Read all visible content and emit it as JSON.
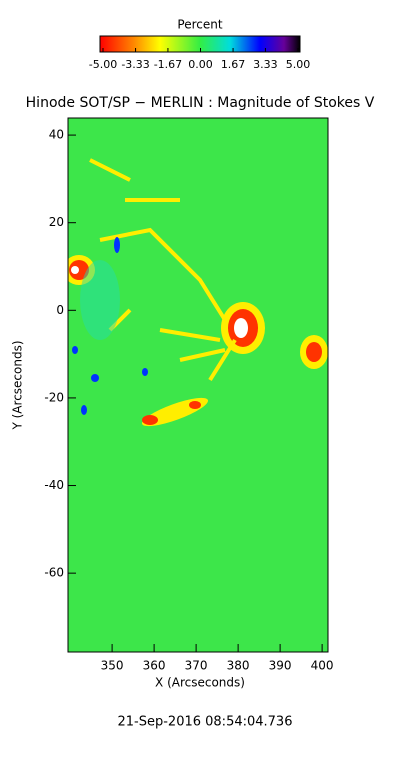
{
  "chart_data": {
    "type": "heatmap",
    "colorbar_title": "Percent",
    "clim": [
      -5,
      5
    ],
    "cticks": [
      {
        "value": -5,
        "label": "-5.00"
      },
      {
        "value": -3.33,
        "label": "-3.33"
      },
      {
        "value": -1.67,
        "label": "-1.67"
      },
      {
        "value": 0,
        "label": "0.00"
      },
      {
        "value": 1.67,
        "label": "1.67"
      },
      {
        "value": 3.33,
        "label": "3.33"
      },
      {
        "value": 5,
        "label": "5.00"
      }
    ],
    "title": "Hinode SOT/SP − MERLIN : Magnitude of Stokes V",
    "xlabel": "X (Arcseconds)",
    "ylabel": "Y (Arcseconds)",
    "xlim": [
      339.5,
      401.4
    ],
    "xticks": [
      350,
      360,
      370,
      380,
      390,
      400
    ],
    "ylim": [
      -78,
      43.9
    ],
    "yticks": [
      -60,
      -40,
      -20,
      0,
      20,
      40
    ],
    "date": "21-Sep-2016 08:54:04.736"
  }
}
